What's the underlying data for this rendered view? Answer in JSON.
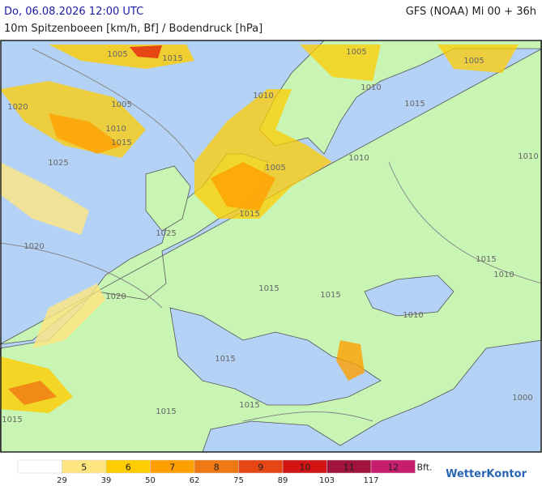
{
  "header": {
    "run_time": "Do, 06.08.2026 12:00 UTC",
    "model": "GFS (NOAA) Mi 00 + 36h",
    "parameter": "10m Spitzenboeen [km/h, Bf] / Bodendruck [hPa]"
  },
  "isobar_labels": [
    "1005",
    "1015",
    "1005",
    "1020",
    "1010",
    "1015",
    "1025",
    "1020",
    "1020",
    "1015",
    "1015",
    "1015",
    "1015",
    "1005",
    "1015",
    "1025",
    "1015",
    "1015",
    "1010",
    "1015",
    "1010",
    "1010",
    "1005",
    "1010",
    "1005",
    "1010",
    "1015",
    "1000",
    "1010"
  ],
  "legend": {
    "bft": [
      5,
      6,
      7,
      8,
      9,
      10,
      11,
      12
    ],
    "colors": [
      "#ffffff",
      "#ffe680",
      "#ffcc00",
      "#ffa000",
      "#f07814",
      "#e64614",
      "#d21414",
      "#a0143c",
      "#c81e6e"
    ],
    "unit": "Bft.",
    "kmh": [
      29,
      39,
      50,
      62,
      75,
      89,
      103,
      117
    ]
  },
  "brand": "WetterKontor"
}
